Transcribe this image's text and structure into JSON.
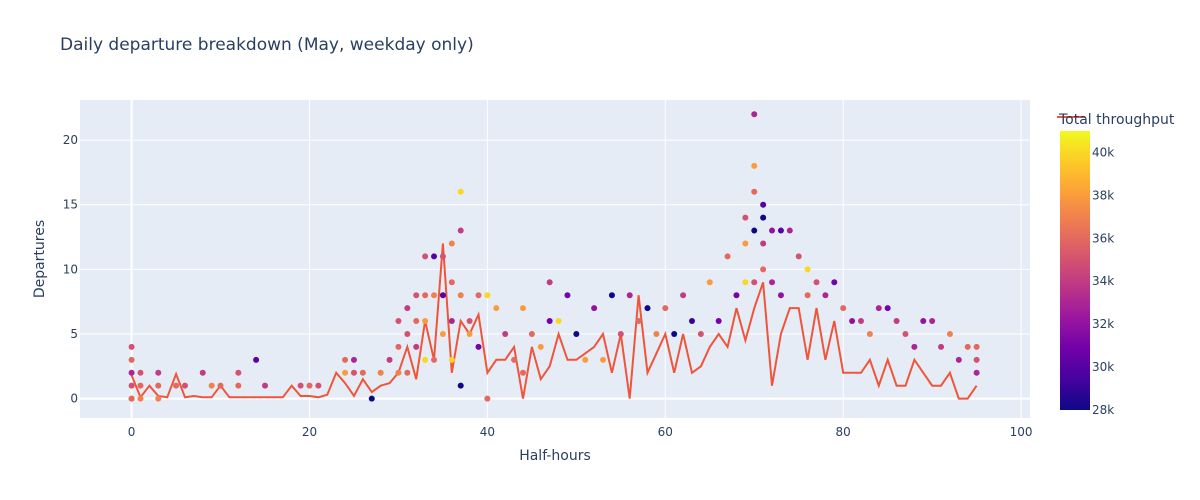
{
  "chart_data": {
    "type": "scatter",
    "title": "Daily departure breakdown (May, weekday only)",
    "xlabel": "Half-hours",
    "ylabel": "Departures",
    "xlim": [
      -5.8,
      101
    ],
    "ylim": [
      -1.5,
      23.1
    ],
    "x_ticks": [
      0,
      20,
      40,
      60,
      80,
      100
    ],
    "y_ticks": [
      0,
      5,
      10,
      15,
      20
    ],
    "grid": true,
    "legend_position": "top-right",
    "line_series": {
      "name": "Total throughput",
      "color": "#ef553b",
      "x": [
        0,
        1,
        2,
        3,
        4,
        5,
        6,
        7,
        8,
        9,
        10,
        11,
        12,
        13,
        14,
        15,
        16,
        17,
        18,
        19,
        20,
        21,
        22,
        23,
        24,
        25,
        26,
        27,
        28,
        29,
        30,
        31,
        32,
        33,
        34,
        35,
        36,
        37,
        38,
        39,
        40,
        41,
        42,
        43,
        44,
        45,
        46,
        47,
        48,
        49,
        50,
        51,
        52,
        53,
        54,
        55,
        56,
        57,
        58,
        59,
        60,
        61,
        62,
        63,
        64,
        65,
        66,
        67,
        68,
        69,
        70,
        71,
        72,
        73,
        74,
        75,
        76,
        77,
        78,
        79,
        80,
        81,
        82,
        83,
        84,
        85,
        86,
        87,
        88,
        89,
        90,
        91,
        92,
        93,
        94,
        95
      ],
      "y": [
        1.8,
        0.1,
        1,
        0.2,
        0.1,
        1.9,
        0.1,
        0.2,
        0.1,
        0.1,
        1,
        0.1,
        0.1,
        0.1,
        0.1,
        0.1,
        0.1,
        0.1,
        1,
        0.2,
        0.2,
        0.1,
        0.3,
        2,
        1.2,
        0.2,
        1.5,
        0.5,
        1,
        1.2,
        2,
        4,
        1.5,
        6,
        3,
        12,
        2,
        6,
        5,
        6.5,
        2,
        3,
        3,
        4,
        0,
        4,
        1.5,
        2.5,
        5,
        3,
        3,
        3.5,
        4,
        5,
        2,
        5,
        0,
        8,
        2,
        3.5,
        5,
        2,
        5,
        2,
        2.5,
        4,
        5,
        4,
        7,
        4.5,
        7,
        9,
        1,
        5,
        7,
        7,
        3,
        7,
        3,
        6,
        2,
        2,
        2,
        3,
        1,
        3,
        1,
        1,
        3,
        2,
        1,
        1,
        2,
        0,
        0,
        1
      ]
    },
    "scatter_series": {
      "x": [
        0,
        0,
        0,
        0,
        0,
        0,
        0,
        1,
        1,
        1,
        3,
        3,
        3,
        5,
        6,
        8,
        9,
        10,
        12,
        12,
        14,
        15,
        19,
        20,
        21,
        24,
        24,
        25,
        25,
        26,
        27,
        28,
        29,
        30,
        30,
        30,
        31,
        31,
        31,
        32,
        32,
        32,
        33,
        33,
        33,
        33,
        34,
        34,
        34,
        35,
        35,
        35,
        36,
        36,
        36,
        36,
        37,
        37,
        37,
        37,
        38,
        38,
        39,
        39,
        40,
        40,
        41,
        42,
        43,
        44,
        44,
        45,
        46,
        47,
        47,
        48,
        49,
        50,
        51,
        52,
        53,
        54,
        55,
        56,
        57,
        58,
        59,
        60,
        61,
        62,
        63,
        64,
        65,
        66,
        67,
        68,
        69,
        69,
        69,
        70,
        70,
        70,
        70,
        70,
        71,
        71,
        71,
        71,
        72,
        72,
        73,
        73,
        74,
        75,
        76,
        76,
        77,
        78,
        79,
        80,
        81,
        82,
        83,
        84,
        85,
        86,
        87,
        88,
        89,
        90,
        91,
        92,
        93,
        94,
        95,
        95,
        95
      ],
      "y": [
        4,
        3,
        2,
        1,
        0,
        0,
        0,
        2,
        1,
        0,
        2,
        1,
        0,
        1,
        1,
        2,
        1,
        1,
        2,
        1,
        3,
        1,
        1,
        1,
        1,
        3,
        2,
        3,
        2,
        2,
        0,
        2,
        3,
        6,
        4,
        2,
        7,
        5,
        2,
        8,
        6,
        4,
        11,
        8,
        6,
        3,
        11,
        8,
        3,
        11,
        8,
        5,
        12,
        9,
        6,
        3,
        16,
        13,
        8,
        1,
        6,
        5,
        8,
        4,
        8,
        0,
        7,
        5,
        3,
        7,
        2,
        5,
        4,
        9,
        6,
        6,
        8,
        5,
        3,
        7,
        3,
        8,
        5,
        8,
        6,
        7,
        5,
        7,
        5,
        8,
        6,
        5,
        9,
        6,
        11,
        8,
        14,
        12,
        9,
        22,
        18,
        16,
        13,
        9,
        15,
        14,
        12,
        10,
        13,
        9,
        13,
        8,
        13,
        11,
        10,
        8,
        9,
        8,
        9,
        7,
        6,
        6,
        5,
        7,
        7,
        6,
        5,
        4,
        6,
        6,
        4,
        5,
        3,
        4,
        4,
        3,
        2
      ],
      "color_values": [
        35000,
        36000,
        33000,
        35000,
        37000,
        38000,
        36000,
        35000,
        36000,
        37000,
        34000,
        36000,
        37000,
        36000,
        35000,
        34000,
        37000,
        36000,
        35000,
        36000,
        30000,
        34000,
        35000,
        36000,
        35000,
        36000,
        38000,
        33000,
        35000,
        36000,
        28000,
        37000,
        34000,
        35000,
        36000,
        37000,
        34000,
        35000,
        36000,
        35000,
        36000,
        34000,
        35000,
        36000,
        38000,
        40000,
        30000,
        37000,
        36000,
        35000,
        30000,
        38000,
        37000,
        36000,
        33000,
        40000,
        40000,
        34000,
        37000,
        28000,
        35000,
        38000,
        36000,
        31000,
        40000,
        36000,
        38000,
        34000,
        36000,
        38000,
        36000,
        36000,
        38000,
        34000,
        31000,
        40000,
        31000,
        28000,
        38000,
        32000,
        38000,
        28000,
        35000,
        33000,
        36000,
        28000,
        37000,
        36000,
        28000,
        34000,
        29000,
        35000,
        38000,
        31000,
        36000,
        31000,
        35000,
        38000,
        40000,
        33000,
        38000,
        36000,
        28000,
        35000,
        30000,
        28000,
        34000,
        36000,
        32000,
        33000,
        30000,
        32000,
        33000,
        35000,
        40000,
        36000,
        35000,
        33000,
        31000,
        36000,
        32000,
        34000,
        37000,
        33000,
        31000,
        34000,
        35000,
        33000,
        32000,
        33000,
        34000,
        37000,
        33000,
        36000,
        36000,
        35000,
        33000
      ]
    },
    "colorbar": {
      "min": 28000,
      "max": 41000,
      "ticks": [
        28000,
        30000,
        32000,
        34000,
        36000,
        38000,
        40000
      ],
      "tick_labels": [
        "28k",
        "30k",
        "32k",
        "34k",
        "36k",
        "38k",
        "40k"
      ],
      "colorscale": [
        "#0d0887",
        "#46039f",
        "#7201a8",
        "#9c179e",
        "#bd3786",
        "#d8576b",
        "#ed7953",
        "#fb9f3a",
        "#fdca26",
        "#f0f921"
      ]
    },
    "plot_background": "#e5ecf6",
    "grid_color": "#ffffff"
  }
}
